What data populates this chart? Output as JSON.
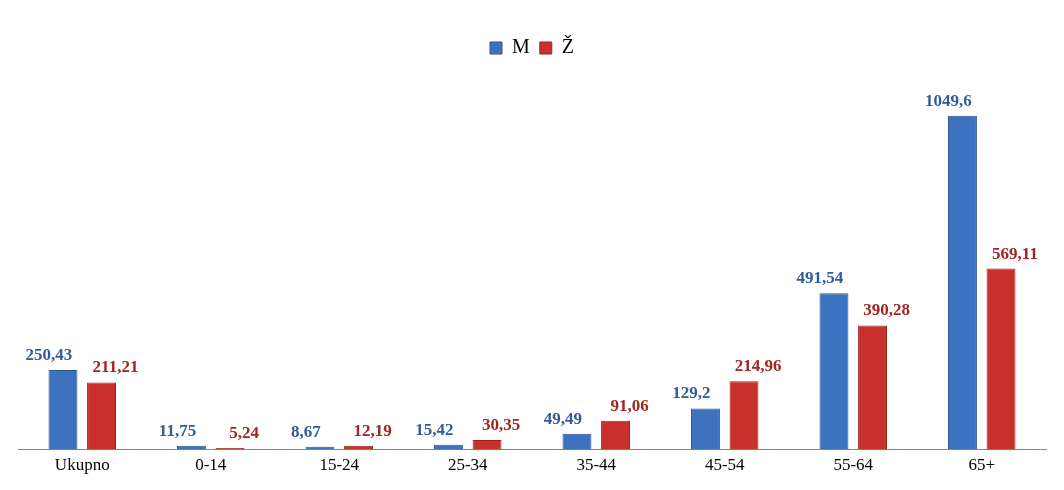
{
  "chart_data": {
    "type": "bar",
    "categories": [
      "Ukupno",
      "0-14",
      "15-24",
      "25-34",
      "35-44",
      "45-54",
      "55-64",
      "65+"
    ],
    "series": [
      {
        "name": "M",
        "color": "#3d72c0",
        "values": [
          250.43,
          11.75,
          8.67,
          15.42,
          49.49,
          129.2,
          491.54,
          1049.6
        ],
        "value_labels": [
          "250,43",
          "11,75",
          "8,67",
          "15,42",
          "49,49",
          "129,2",
          "491,54",
          "1049,6"
        ]
      },
      {
        "name": "Ž",
        "color": "#c9302c",
        "values": [
          211.21,
          5.24,
          12.19,
          30.35,
          91.06,
          214.96,
          390.28,
          569.11
        ],
        "value_labels": [
          "211,21",
          "5,24",
          "12,19",
          "30,35",
          "91,06",
          "214,96",
          "390,28",
          "569,11"
        ]
      }
    ],
    "legend": "top",
    "grid": false
  }
}
